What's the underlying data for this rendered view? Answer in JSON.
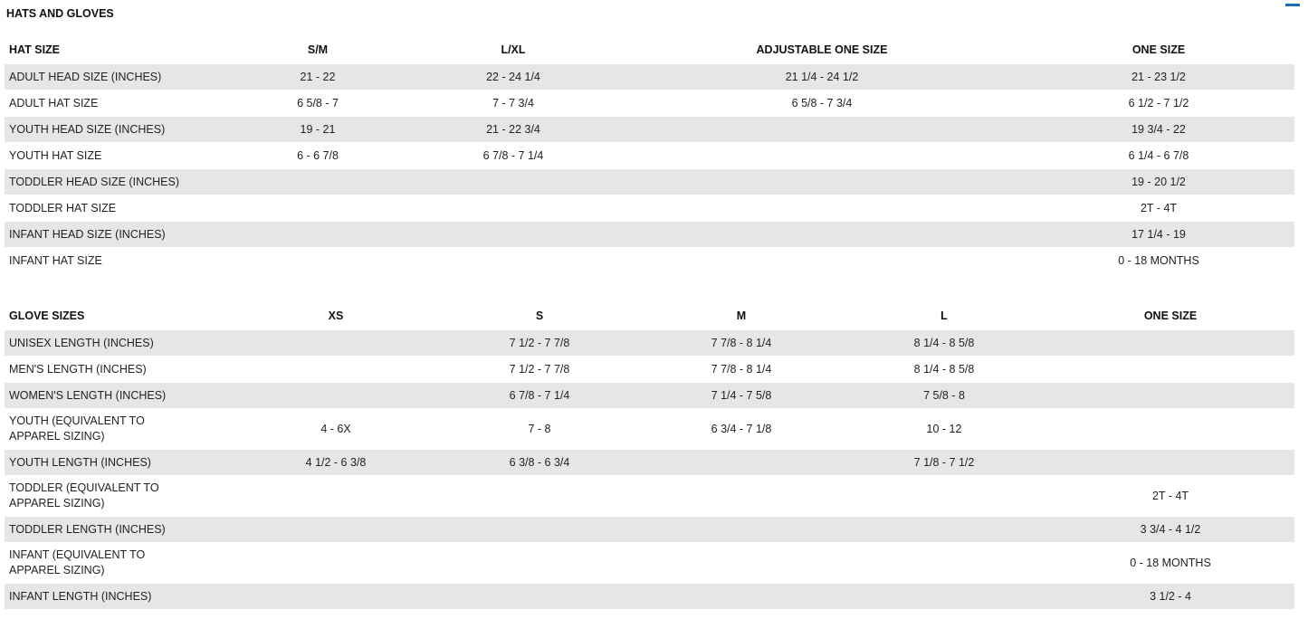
{
  "title": "HATS AND GLOVES",
  "accent_color": "#1a6fb8",
  "hat": {
    "headers": [
      "HAT SIZE",
      "S/M",
      "L/XL",
      "ADJUSTABLE ONE SIZE",
      "ONE SIZE"
    ],
    "rows": [
      [
        "ADULT HEAD SIZE (INCHES)",
        "21 - 22",
        "22 - 24 1/4",
        "21 1/4 - 24 1/2",
        "21 - 23 1/2"
      ],
      [
        "ADULT HAT SIZE",
        "6 5/8 - 7",
        "7 - 7 3/4",
        "6 5/8 - 7 3/4",
        "6 1/2 - 7 1/2"
      ],
      [
        "YOUTH HEAD SIZE (INCHES)",
        "19 - 21",
        "21 - 22 3/4",
        "",
        "19 3/4 - 22"
      ],
      [
        "YOUTH HAT SIZE",
        "6 - 6 7/8",
        "6 7/8 - 7 1/4",
        "",
        "6 1/4 - 6 7/8"
      ],
      [
        "TODDLER HEAD SIZE (INCHES)",
        "",
        "",
        "",
        "19 - 20 1/2"
      ],
      [
        "TODDLER HAT SIZE",
        "",
        "",
        "",
        "2T - 4T"
      ],
      [
        "INFANT HEAD SIZE (INCHES)",
        "",
        "",
        "",
        "17 1/4 - 19"
      ],
      [
        "INFANT HAT SIZE",
        "",
        "",
        "",
        "0 - 18 MONTHS"
      ]
    ]
  },
  "glove": {
    "headers": [
      "GLOVE SIZES",
      "XS",
      "S",
      "M",
      "L",
      "ONE SIZE"
    ],
    "rows": [
      [
        "UNISEX LENGTH (INCHES)",
        "",
        "7 1/2 - 7 7/8",
        "7 7/8 - 8 1/4",
        "8 1/4 - 8 5/8",
        ""
      ],
      [
        "MEN'S LENGTH (INCHES)",
        "",
        "7 1/2 - 7 7/8",
        "7 7/8 - 8 1/4",
        "8 1/4 - 8 5/8",
        ""
      ],
      [
        "WOMEN'S LENGTH (INCHES)",
        "",
        "6 7/8 - 7 1/4",
        "7 1/4 - 7 5/8",
        "7 5/8 - 8",
        ""
      ],
      [
        "YOUTH (EQUIVALENT TO APPAREL SIZING)",
        "4 - 6X",
        "7 - 8",
        "6 3/4 - 7 1/8",
        "10 - 12",
        ""
      ],
      [
        "YOUTH LENGTH (INCHES)",
        "4 1/2 - 6 3/8",
        "6 3/8 - 6 3/4",
        "",
        "7 1/8 - 7 1/2",
        ""
      ],
      [
        "TODDLER (EQUIVALENT TO APPAREL SIZING)",
        "",
        "",
        "",
        "",
        "2T - 4T"
      ],
      [
        "TODDLER LENGTH (INCHES)",
        "",
        "",
        "",
        "",
        "3 3/4 - 4 1/2"
      ],
      [
        "INFANT (EQUIVALENT TO APPAREL SIZING)",
        "",
        "",
        "",
        "",
        "0 - 18 MONTHS"
      ],
      [
        "INFANT LENGTH (INCHES)",
        "",
        "",
        "",
        "",
        "3 1/2 - 4"
      ]
    ]
  }
}
